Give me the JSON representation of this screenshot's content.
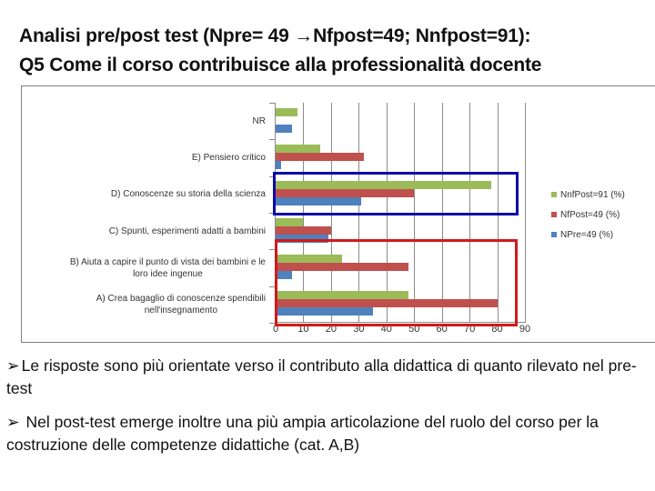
{
  "title": {
    "line1": "Analisi pre/post test (Npre= 49 →Nfpost=49; Nnfpost=91):",
    "line2": "Q5 Come il corso contribuisce alla professionalità docente"
  },
  "legend": {
    "items": [
      {
        "label": "NnfPost=91 (%)",
        "color": "#9bbb59"
      },
      {
        "label": "NfPost=49 (%)",
        "color": "#c0504d"
      },
      {
        "label": "NPre=49 (%)",
        "color": "#4f81bd"
      }
    ]
  },
  "categories_display": [
    {
      "line1": "NR",
      "line2": ""
    },
    {
      "line1": "E) Pensiero critico",
      "line2": ""
    },
    {
      "line1": "D) Conoscenze su storia della scienza",
      "line2": ""
    },
    {
      "line1": "C) Spunti, esperimenti adatti a bambini",
      "line2": ""
    },
    {
      "line1": "B) Aiuta a capire il punto di vista dei bambini e le",
      "line2": "loro idee ingenue"
    },
    {
      "line1": "A) Crea bagaglio di conoscenze spendibili",
      "line2": "nell'insegnamento"
    }
  ],
  "x_ticks": [
    "0",
    "10",
    "20",
    "30",
    "40",
    "50",
    "60",
    "70",
    "80",
    "90"
  ],
  "highlights": [
    {
      "name": "blue-highlight-box",
      "color": "#0a0aaa",
      "covers": "D"
    },
    {
      "name": "red-highlight-box",
      "color": "#d11a1a",
      "covers": "A,B"
    }
  ],
  "bullets": [
    {
      "arrow": "➢",
      "text": "Le risposte sono più orientate verso il contributo alla didattica di quanto rilevato nel pre-test"
    },
    {
      "arrow": "➢",
      "text": " Nel post-test emerge inoltre una più ampia articolazione del ruolo del corso per la costruzione delle competenze didattiche (cat. A,B)"
    }
  ],
  "chart_data": {
    "type": "bar",
    "orientation": "horizontal",
    "title": "Q5 Come il corso contribuisce alla professionalità docente",
    "categories": [
      "NR",
      "E) Pensiero critico",
      "D) Conoscenze su storia della scienza",
      "C) Spunti, esperimenti adatti a bambini",
      "B) Aiuta a capire il punto di vista dei bambini e le loro idee ingenue",
      "A) Crea bagaglio di conoscenze spendibili nell'insegnamento"
    ],
    "series": [
      {
        "name": "NnfPost=91 (%)",
        "color": "#9bbb59",
        "values": [
          8,
          16,
          78,
          10,
          24,
          48
        ]
      },
      {
        "name": "NfPost=49 (%)",
        "color": "#c0504d",
        "values": [
          0,
          32,
          50,
          20,
          48,
          80
        ]
      },
      {
        "name": "NPre=49 (%)",
        "color": "#4f81bd",
        "values": [
          6,
          2,
          31,
          19,
          6,
          35
        ]
      }
    ],
    "xlabel": "",
    "ylabel": "",
    "xlim": [
      0,
      90
    ],
    "x_ticks": [
      0,
      10,
      20,
      30,
      40,
      50,
      60,
      70,
      80,
      90
    ],
    "grid": true,
    "legend_position": "right",
    "annotations": [
      "Blue box highlights category D",
      "Red box highlights categories A and B"
    ]
  }
}
